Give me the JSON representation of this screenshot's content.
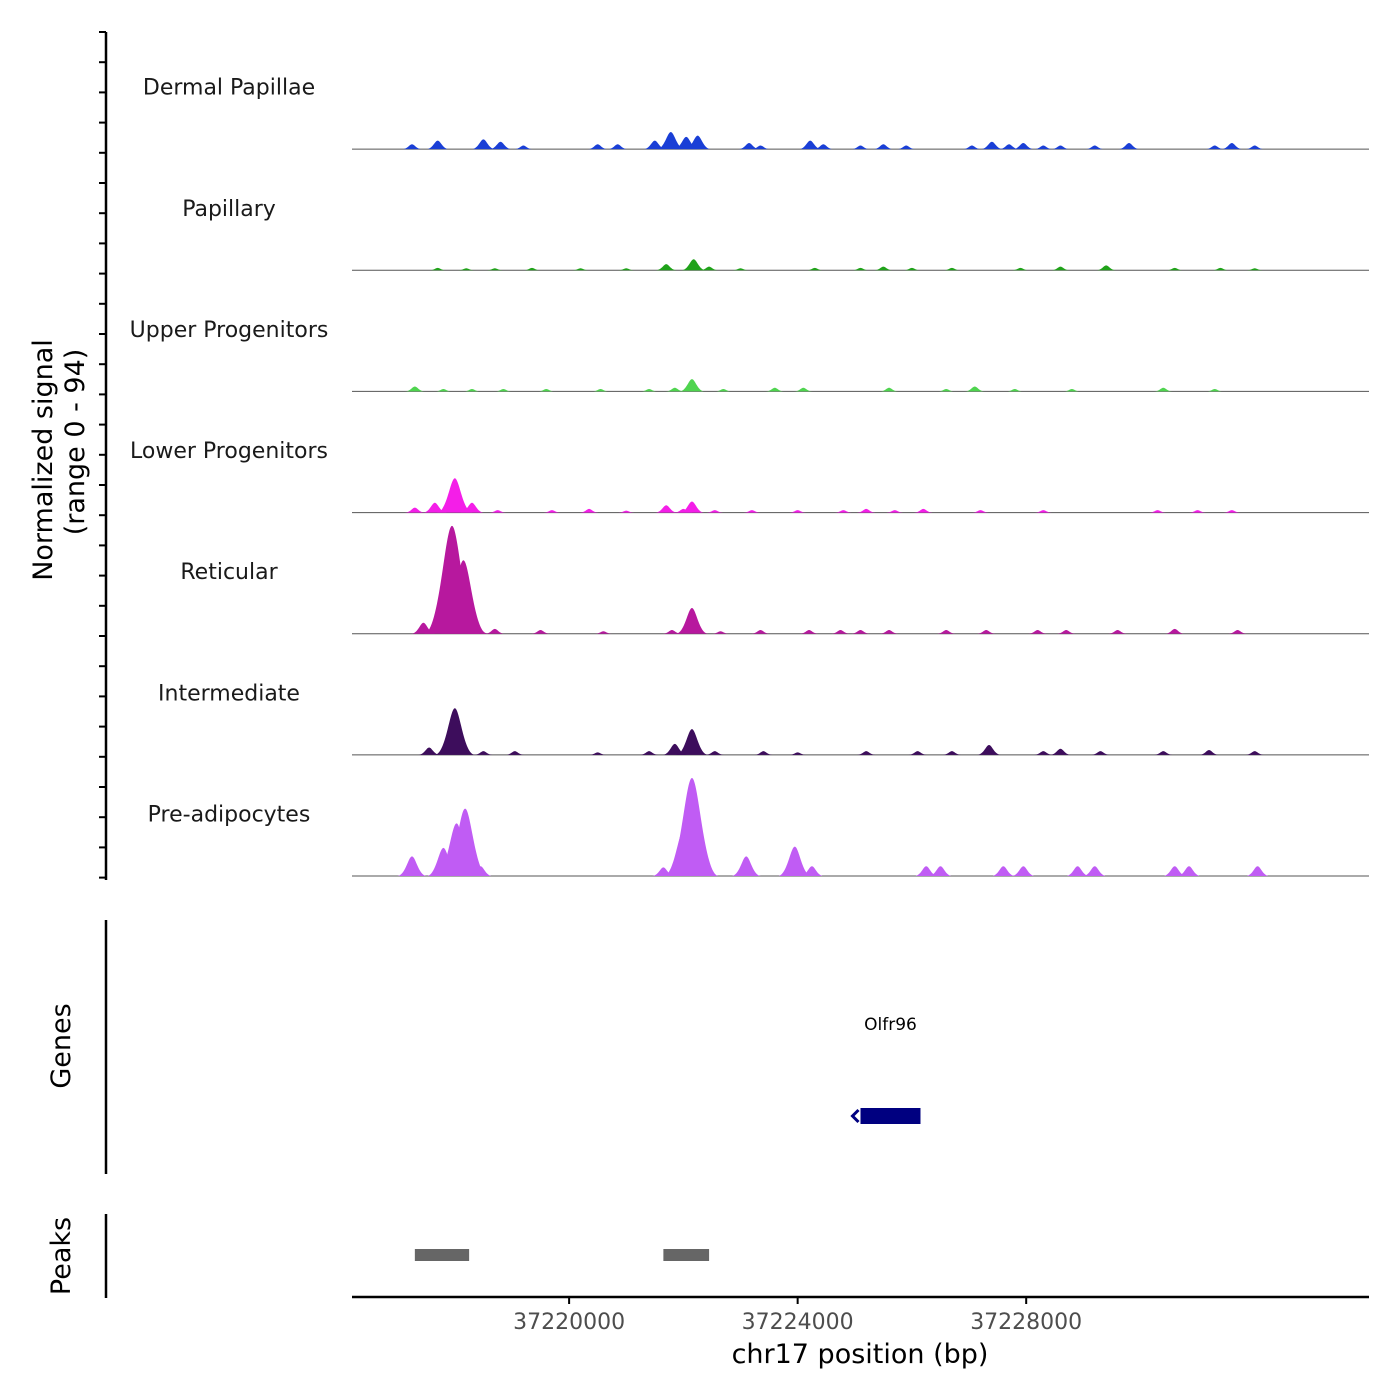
{
  "chart_data": {
    "type": "area",
    "title": "",
    "xlabel": "chr17 position (bp)",
    "ylabel_line1": "Normalized signal",
    "ylabel_line2": "(range 0 - 94)",
    "xlim": [
      37216200,
      37234000
    ],
    "ylim": [
      0,
      94
    ],
    "x_ticks": [
      {
        "value": 37220000,
        "label": "37220000"
      },
      {
        "value": 37224000,
        "label": "37224000"
      },
      {
        "value": 37228000,
        "label": "37228000"
      }
    ],
    "series": [
      {
        "name": "Dermal Papillae",
        "color": "#1a3fd6",
        "peaks": [
          {
            "x": 37217250,
            "y": 4
          },
          {
            "x": 37217700,
            "y": 7
          },
          {
            "x": 37218500,
            "y": 8
          },
          {
            "x": 37218800,
            "y": 6
          },
          {
            "x": 37219200,
            "y": 3
          },
          {
            "x": 37220500,
            "y": 4
          },
          {
            "x": 37220850,
            "y": 4
          },
          {
            "x": 37221500,
            "y": 7
          },
          {
            "x": 37221780,
            "y": 14
          },
          {
            "x": 37222050,
            "y": 10
          },
          {
            "x": 37222250,
            "y": 11
          },
          {
            "x": 37223150,
            "y": 5
          },
          {
            "x": 37223350,
            "y": 3
          },
          {
            "x": 37224220,
            "y": 7
          },
          {
            "x": 37224450,
            "y": 4
          },
          {
            "x": 37225100,
            "y": 3
          },
          {
            "x": 37225500,
            "y": 4
          },
          {
            "x": 37225900,
            "y": 3
          },
          {
            "x": 37227050,
            "y": 3
          },
          {
            "x": 37227400,
            "y": 6
          },
          {
            "x": 37227700,
            "y": 4
          },
          {
            "x": 37227950,
            "y": 5
          },
          {
            "x": 37228300,
            "y": 3
          },
          {
            "x": 37228600,
            "y": 3
          },
          {
            "x": 37229200,
            "y": 3
          },
          {
            "x": 37229800,
            "y": 5
          },
          {
            "x": 37231300,
            "y": 3
          },
          {
            "x": 37231600,
            "y": 5
          },
          {
            "x": 37232000,
            "y": 3
          }
        ]
      },
      {
        "name": "Papillary",
        "color": "#20a21a",
        "peaks": [
          {
            "x": 37217700,
            "y": 2
          },
          {
            "x": 37218200,
            "y": 1.5
          },
          {
            "x": 37218700,
            "y": 1.5
          },
          {
            "x": 37219350,
            "y": 2
          },
          {
            "x": 37220200,
            "y": 1.5
          },
          {
            "x": 37221000,
            "y": 1.5
          },
          {
            "x": 37221700,
            "y": 5
          },
          {
            "x": 37222180,
            "y": 9
          },
          {
            "x": 37222450,
            "y": 3
          },
          {
            "x": 37223000,
            "y": 1.5
          },
          {
            "x": 37224300,
            "y": 2
          },
          {
            "x": 37225100,
            "y": 2
          },
          {
            "x": 37225500,
            "y": 3
          },
          {
            "x": 37226000,
            "y": 2
          },
          {
            "x": 37226700,
            "y": 2
          },
          {
            "x": 37227900,
            "y": 2
          },
          {
            "x": 37228600,
            "y": 3
          },
          {
            "x": 37229400,
            "y": 4
          },
          {
            "x": 37230600,
            "y": 2
          },
          {
            "x": 37231400,
            "y": 2
          },
          {
            "x": 37232000,
            "y": 1.5
          }
        ]
      },
      {
        "name": "Upper Progenitors",
        "color": "#4fd44f",
        "peaks": [
          {
            "x": 37217300,
            "y": 4
          },
          {
            "x": 37217800,
            "y": 2
          },
          {
            "x": 37218300,
            "y": 2
          },
          {
            "x": 37218850,
            "y": 2
          },
          {
            "x": 37219600,
            "y": 2
          },
          {
            "x": 37220550,
            "y": 2
          },
          {
            "x": 37221400,
            "y": 2
          },
          {
            "x": 37221850,
            "y": 3
          },
          {
            "x": 37222150,
            "y": 10
          },
          {
            "x": 37222700,
            "y": 2
          },
          {
            "x": 37223600,
            "y": 3
          },
          {
            "x": 37224100,
            "y": 3
          },
          {
            "x": 37225600,
            "y": 3
          },
          {
            "x": 37226600,
            "y": 2
          },
          {
            "x": 37227100,
            "y": 4
          },
          {
            "x": 37227800,
            "y": 2
          },
          {
            "x": 37228800,
            "y": 2
          },
          {
            "x": 37230400,
            "y": 3
          },
          {
            "x": 37231300,
            "y": 2
          }
        ]
      },
      {
        "name": "Lower Progenitors",
        "color": "#f41ee8",
        "peaks": [
          {
            "x": 37217300,
            "y": 4
          },
          {
            "x": 37217650,
            "y": 8
          },
          {
            "x": 37218000,
            "y": 28
          },
          {
            "x": 37218300,
            "y": 8
          },
          {
            "x": 37218750,
            "y": 2
          },
          {
            "x": 37219700,
            "y": 2
          },
          {
            "x": 37220350,
            "y": 3
          },
          {
            "x": 37221000,
            "y": 1.5
          },
          {
            "x": 37221700,
            "y": 6
          },
          {
            "x": 37222000,
            "y": 3
          },
          {
            "x": 37222150,
            "y": 9
          },
          {
            "x": 37222550,
            "y": 2
          },
          {
            "x": 37223200,
            "y": 2
          },
          {
            "x": 37224000,
            "y": 2
          },
          {
            "x": 37224800,
            "y": 2
          },
          {
            "x": 37225200,
            "y": 3
          },
          {
            "x": 37225700,
            "y": 2
          },
          {
            "x": 37226200,
            "y": 3
          },
          {
            "x": 37227200,
            "y": 2
          },
          {
            "x": 37228300,
            "y": 2
          },
          {
            "x": 37230300,
            "y": 2
          },
          {
            "x": 37231000,
            "y": 2
          },
          {
            "x": 37231600,
            "y": 2
          }
        ]
      },
      {
        "name": "Reticular",
        "color": "#b7189e",
        "peaks": [
          {
            "x": 37217450,
            "y": 9
          },
          {
            "x": 37217950,
            "y": 88
          },
          {
            "x": 37218150,
            "y": 60
          },
          {
            "x": 37218400,
            "y": 6
          },
          {
            "x": 37218700,
            "y": 4
          },
          {
            "x": 37219500,
            "y": 3
          },
          {
            "x": 37220600,
            "y": 2
          },
          {
            "x": 37221800,
            "y": 3
          },
          {
            "x": 37222150,
            "y": 21
          },
          {
            "x": 37222650,
            "y": 2
          },
          {
            "x": 37223350,
            "y": 3
          },
          {
            "x": 37224200,
            "y": 3
          },
          {
            "x": 37224750,
            "y": 3
          },
          {
            "x": 37225100,
            "y": 3
          },
          {
            "x": 37225600,
            "y": 3
          },
          {
            "x": 37226600,
            "y": 3
          },
          {
            "x": 37227300,
            "y": 3
          },
          {
            "x": 37228200,
            "y": 3
          },
          {
            "x": 37228700,
            "y": 3
          },
          {
            "x": 37229600,
            "y": 3
          },
          {
            "x": 37230600,
            "y": 4
          },
          {
            "x": 37231700,
            "y": 3
          }
        ]
      },
      {
        "name": "Intermediate",
        "color": "#3d0d5c",
        "peaks": [
          {
            "x": 37217550,
            "y": 6
          },
          {
            "x": 37218000,
            "y": 38
          },
          {
            "x": 37218500,
            "y": 3
          },
          {
            "x": 37219050,
            "y": 3
          },
          {
            "x": 37220500,
            "y": 2
          },
          {
            "x": 37221400,
            "y": 3
          },
          {
            "x": 37221850,
            "y": 9
          },
          {
            "x": 37222150,
            "y": 21
          },
          {
            "x": 37222550,
            "y": 3
          },
          {
            "x": 37223400,
            "y": 3
          },
          {
            "x": 37224000,
            "y": 2
          },
          {
            "x": 37225200,
            "y": 3
          },
          {
            "x": 37226100,
            "y": 3
          },
          {
            "x": 37226700,
            "y": 3
          },
          {
            "x": 37227350,
            "y": 8
          },
          {
            "x": 37228300,
            "y": 3
          },
          {
            "x": 37228600,
            "y": 5
          },
          {
            "x": 37229300,
            "y": 3
          },
          {
            "x": 37230400,
            "y": 3
          },
          {
            "x": 37231200,
            "y": 4
          },
          {
            "x": 37232000,
            "y": 3
          }
        ]
      },
      {
        "name": "Pre-adipocytes",
        "color": "#c05cf4",
        "peaks": [
          {
            "x": 37217250,
            "y": 16
          },
          {
            "x": 37217800,
            "y": 23
          },
          {
            "x": 37218030,
            "y": 43
          },
          {
            "x": 37218180,
            "y": 55
          },
          {
            "x": 37218450,
            "y": 8
          },
          {
            "x": 37221650,
            "y": 7
          },
          {
            "x": 37222000,
            "y": 37
          },
          {
            "x": 37222150,
            "y": 80
          },
          {
            "x": 37223100,
            "y": 16
          },
          {
            "x": 37223950,
            "y": 24
          },
          {
            "x": 37224250,
            "y": 8
          },
          {
            "x": 37226250,
            "y": 8
          },
          {
            "x": 37226500,
            "y": 8
          },
          {
            "x": 37227600,
            "y": 8
          },
          {
            "x": 37227950,
            "y": 8
          },
          {
            "x": 37228900,
            "y": 8
          },
          {
            "x": 37229200,
            "y": 8
          },
          {
            "x": 37230600,
            "y": 8
          },
          {
            "x": 37230850,
            "y": 8
          },
          {
            "x": 37232050,
            "y": 8
          }
        ]
      }
    ],
    "genes": [
      {
        "name": "Olfr96",
        "start": 37225100,
        "end": 37226150,
        "strand": "-",
        "color": "#000080"
      }
    ],
    "peaks_track": {
      "label": "Peaks",
      "color": "#666666",
      "regions": [
        {
          "start": 37217300,
          "end": 37218250
        },
        {
          "start": 37221650,
          "end": 37222450
        }
      ]
    },
    "genes_track_label": "Genes"
  }
}
